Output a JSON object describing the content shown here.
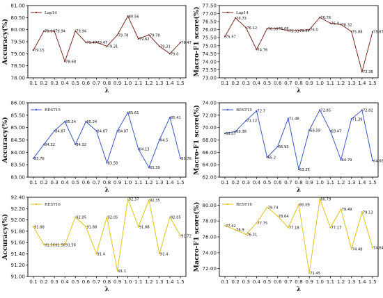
{
  "chart_data": [
    {
      "type": "line",
      "x": [
        "0.1",
        "0.2",
        "0.3",
        "0.4",
        "0.5",
        "0.6",
        "0.7",
        "0.8",
        "0.9",
        "1.0",
        "1.1",
        "1.2",
        "1.3",
        "1.4",
        "1.5"
      ],
      "series": [
        {
          "name": "Lap14",
          "values": [
            79.15,
            79.94,
            79.94,
            78.68,
            79.94,
            79.47,
            79.47,
            79.31,
            79.78,
            80.56,
            79.62,
            79.78,
            79.31,
            79.0,
            79.47
          ]
        }
      ],
      "point_labels": [
        "79.15",
        "79.94",
        "79.94",
        "78.68",
        "79.94",
        "79.47",
        "79.47",
        "79.31",
        "79.78",
        "80.56",
        "79.62",
        "79.78",
        "79.31",
        "79.0",
        "79.47"
      ],
      "ylabel": "Accuracy(%)",
      "xlabel": "λ",
      "ylim": [
        78.0,
        81.0
      ],
      "yticks": [
        "78.00",
        "78.50",
        "79.00",
        "79.50",
        "80.00",
        "80.50",
        "81.00"
      ],
      "color": "#7b2a22",
      "legend": "top-left"
    },
    {
      "type": "line",
      "x": [
        "0.1",
        "0.2",
        "0.3",
        "0.4",
        "0.5",
        "0.6",
        "0.7",
        "0.8",
        "0.9",
        "1.0",
        "1.1",
        "1.2",
        "1.3",
        "1.4",
        "1.5"
      ],
      "series": [
        {
          "name": "Lap14",
          "values": [
            75.57,
            76.73,
            76.12,
            74.76,
            76.06,
            76.08,
            75.93,
            75.94,
            76.0,
            76.76,
            76.4,
            76.32,
            75.88,
            73.38,
            75.87
          ]
        }
      ],
      "point_labels": [
        "75.57",
        "76.73",
        "76.12",
        "74.76",
        "76.06",
        "76.08",
        "75.93",
        "75.94",
        "76.0",
        "76.76",
        "76.4",
        "76.32",
        "75.88",
        "73.38",
        "75.87"
      ],
      "ylabel": "Macro-F1 score(%)",
      "xlabel": "λ",
      "ylim": [
        73.0,
        77.5
      ],
      "yticks": [
        "73.00",
        "73.50",
        "74.00",
        "74.50",
        "75.00",
        "75.50",
        "76.00",
        "76.50",
        "77.00",
        "77.50"
      ],
      "color": "#7b2a22",
      "legend": "top-left"
    },
    {
      "type": "line",
      "x": [
        "0.1",
        "0.2",
        "0.3",
        "0.4",
        "0.5",
        "0.6",
        "0.7",
        "0.8",
        "0.9",
        "1.0",
        "1.1",
        "1.2",
        "1.3",
        "1.4",
        "1.5"
      ],
      "series": [
        {
          "name": "REST15",
          "values": [
            83.76,
            84.32,
            84.87,
            85.24,
            84.32,
            85.24,
            84.87,
            83.58,
            84.87,
            85.61,
            84.13,
            83.39,
            84.5,
            85.41,
            83.76
          ]
        }
      ],
      "point_labels": [
        "83.76",
        "84.32",
        "84.87",
        "85.24",
        "84.32",
        "85.24",
        "84.87",
        "83.58",
        "84.87",
        "85.61",
        "84.13",
        "83.39",
        "84.5",
        "85.41",
        "83.76"
      ],
      "ylabel": "Accuracy(%)",
      "xlabel": "λ",
      "ylim": [
        83.0,
        86.0
      ],
      "yticks": [
        "83.00",
        "83.50",
        "84.00",
        "84.50",
        "85.00",
        "85.50",
        "86.00"
      ],
      "color": "#3a56c4",
      "legend": "top-left"
    },
    {
      "type": "line",
      "x": [
        "0.1",
        "0.2",
        "0.3",
        "0.4",
        "0.5",
        "0.6",
        "0.7",
        "0.8",
        "0.9",
        "1.0",
        "1.1",
        "1.2",
        "1.3",
        "1.4",
        "1.5"
      ],
      "series": [
        {
          "name": "REST15",
          "values": [
            69.07,
            69.38,
            71.12,
            72.7,
            65.2,
            66.93,
            71.48,
            63.25,
            69.59,
            72.85,
            69.47,
            64.79,
            71.39,
            72.82,
            64.66
          ]
        }
      ],
      "point_labels": [
        "69.07",
        "69.38",
        "71.12",
        "72.7",
        "65.2",
        "66.93",
        "71.48",
        "63.25",
        "69.59",
        "72.85",
        "69.47",
        "64.79",
        "71.39",
        "72.82",
        "64.66"
      ],
      "ylabel": "Macro-F1 score(%)",
      "xlabel": "λ",
      "ylim": [
        62.0,
        74.0
      ],
      "yticks": [
        "62.00",
        "64.00",
        "66.00",
        "68.00",
        "70.00",
        "72.00",
        "74.00"
      ],
      "color": "#3a56c4",
      "legend": "top-left"
    },
    {
      "type": "line",
      "x": [
        "0.1",
        "0.2",
        "0.3",
        "0.4",
        "0.5",
        "0.6",
        "0.7",
        "0.8",
        "0.9",
        "1.0",
        "1.1",
        "1.2",
        "1.3",
        "1.4",
        "1.5"
      ],
      "series": [
        {
          "name": "REST16",
          "values": [
            91.88,
            91.56,
            91.56,
            91.56,
            92.05,
            91.88,
            91.4,
            92.05,
            91.1,
            92.37,
            91.88,
            92.35,
            91.4,
            92.05,
            91.72
          ]
        }
      ],
      "point_labels": [
        "91.88",
        "91.56",
        "91.56",
        "91.56",
        "92.05",
        "91.88",
        "91.4",
        "92.05",
        "91.1",
        "92.37",
        "91.88",
        "92.35",
        "91.4",
        "92.05",
        "91.72"
      ],
      "ylabel": "Accuracy(%)",
      "xlabel": "λ",
      "ylim": [
        91.0,
        92.4
      ],
      "yticks": [
        "91.00",
        "91.20",
        "91.40",
        "91.60",
        "91.80",
        "92.00",
        "92.20",
        "92.40"
      ],
      "color": "#e2c21a",
      "legend": "top-left"
    },
    {
      "type": "line",
      "x": [
        "0.1",
        "0.2",
        "0.3",
        "0.4",
        "0.5",
        "0.6",
        "0.7",
        "0.8",
        "0.9",
        "1.0",
        "1.1",
        "1.2",
        "1.3",
        "1.4",
        "1.5"
      ],
      "series": [
        {
          "name": "REST16",
          "values": [
            77.42,
            76.9,
            76.31,
            77.75,
            79.74,
            78.64,
            77.18,
            80.09,
            71.45,
            80.79,
            77.17,
            79.49,
            74.48,
            79.13,
            74.64
          ]
        }
      ],
      "point_labels": [
        "77.42",
        "76.9",
        "76.31",
        "77.75",
        "79.74",
        "78.64",
        "77.18",
        "80.09",
        "71.45",
        "80.79",
        "77.17",
        "79.49",
        "74.48",
        "79.13",
        "74.64"
      ],
      "ylabel": "Macro-F1 score(%)",
      "xlabel": "λ",
      "ylim": [
        71.0,
        81.0
      ],
      "yticks": [
        "72.00",
        "74.00",
        "76.00",
        "78.00",
        "80.00"
      ],
      "color": "#e2c21a",
      "legend": "top-left"
    }
  ]
}
